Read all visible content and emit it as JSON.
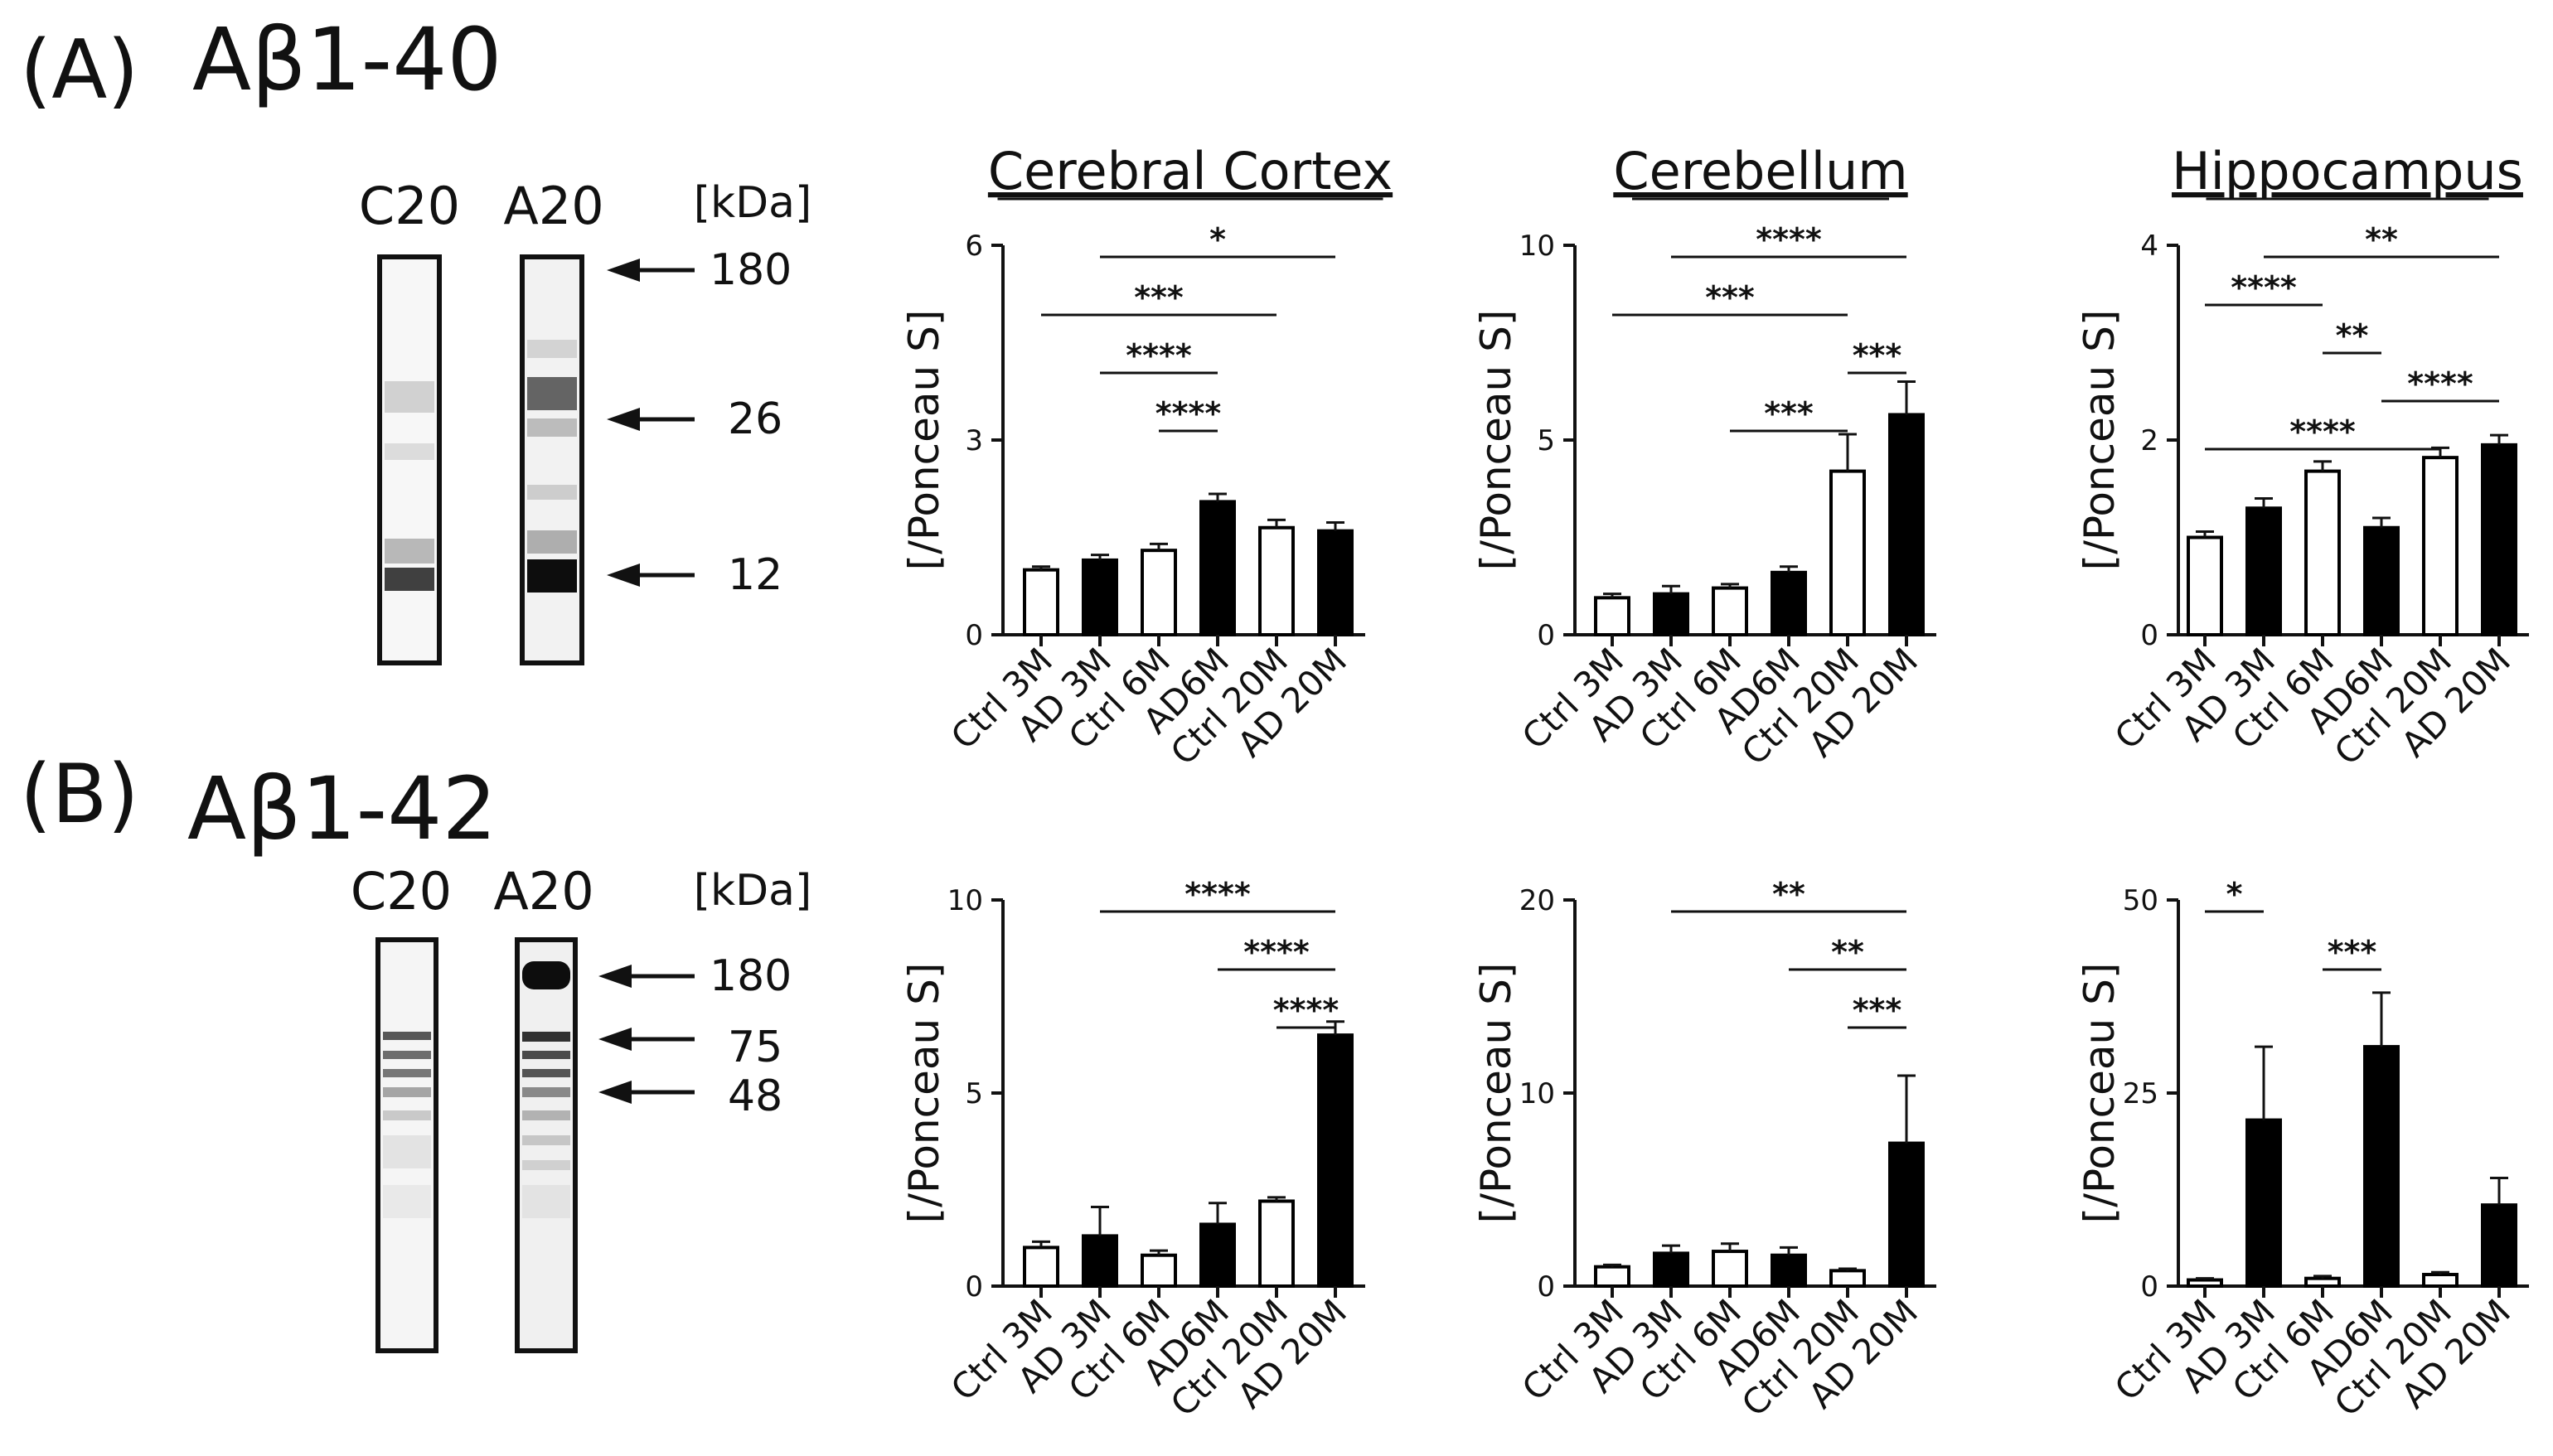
{
  "panels": [
    {
      "label": "(A)",
      "antibody": "Aβ1-40",
      "blot": {
        "lanes": [
          "C20",
          "A20"
        ],
        "unit_label": "[kDa]",
        "markers": [
          "180",
          "26",
          "12"
        ]
      }
    },
    {
      "label": "(B)",
      "antibody": "Aβ1-42",
      "blot": {
        "lanes": [
          "C20",
          "A20"
        ],
        "unit_label": "[kDa]",
        "markers": [
          "180",
          "75",
          "48"
        ]
      }
    }
  ],
  "region_titles": [
    "Cerebral Cortex",
    "Cerebellum",
    "Hippocampus"
  ],
  "chart_data": [
    {
      "type": "bar",
      "panel": "A",
      "title": "Cerebral Cortex",
      "ylabel": "[/Ponceau S]",
      "categories": [
        "Ctrl 3M",
        "AD 3M",
        "Ctrl 6M",
        "AD6M",
        "Ctrl 20M",
        "AD 20M"
      ],
      "fill": [
        "white",
        "black",
        "white",
        "black",
        "white",
        "black"
      ],
      "values": [
        1.0,
        1.15,
        1.3,
        2.05,
        1.65,
        1.6
      ],
      "errors": [
        0.05,
        0.08,
        0.1,
        0.12,
        0.12,
        0.13
      ],
      "ylim": [
        0,
        6
      ],
      "yticks": [
        "0",
        "3",
        "6"
      ],
      "significance": [
        {
          "from": 2,
          "to": 6,
          "label": "*"
        },
        {
          "from": 1,
          "to": 5,
          "label": "***"
        },
        {
          "from": 2,
          "to": 4,
          "label": "****"
        },
        {
          "from": 3,
          "to": 4,
          "label": "****"
        }
      ]
    },
    {
      "type": "bar",
      "panel": "A",
      "title": "Cerebellum",
      "ylabel": "[/Ponceau S]",
      "categories": [
        "Ctrl 3M",
        "AD 3M",
        "Ctrl 6M",
        "AD6M",
        "Ctrl 20M",
        "AD 20M"
      ],
      "fill": [
        "white",
        "black",
        "white",
        "black",
        "white",
        "black"
      ],
      "values": [
        0.95,
        1.05,
        1.2,
        1.6,
        4.2,
        5.65
      ],
      "errors": [
        0.1,
        0.2,
        0.1,
        0.15,
        0.95,
        0.85
      ],
      "ylim": [
        0,
        10
      ],
      "yticks": [
        "0",
        "5",
        "10"
      ],
      "significance": [
        {
          "from": 2,
          "to": 6,
          "label": "****"
        },
        {
          "from": 1,
          "to": 5,
          "label": "***"
        },
        {
          "from": 5,
          "to": 6,
          "label": "***"
        },
        {
          "from": 3,
          "to": 5,
          "label": "***"
        }
      ]
    },
    {
      "type": "bar",
      "panel": "A",
      "title": "Hippocampus",
      "ylabel": "[/Ponceau S]",
      "categories": [
        "Ctrl 3M",
        "AD 3M",
        "Ctrl 6M",
        "AD6M",
        "Ctrl 20M",
        "AD 20M"
      ],
      "fill": [
        "white",
        "black",
        "white",
        "black",
        "white",
        "black"
      ],
      "values": [
        1.0,
        1.3,
        1.68,
        1.1,
        1.82,
        1.95
      ],
      "errors": [
        0.06,
        0.1,
        0.1,
        0.1,
        0.1,
        0.1
      ],
      "ylim": [
        0,
        4
      ],
      "yticks": [
        "0",
        "2",
        "4"
      ],
      "significance": [
        {
          "from": 2,
          "to": 6,
          "label": "**"
        },
        {
          "from": 1,
          "to": 3,
          "label": "****"
        },
        {
          "from": 3,
          "to": 4,
          "label": "**"
        },
        {
          "from": 4,
          "to": 6,
          "label": "****"
        },
        {
          "from": 1,
          "to": 5,
          "label": "****"
        }
      ]
    },
    {
      "type": "bar",
      "panel": "B",
      "title": "",
      "ylabel": "[/Ponceau S]",
      "categories": [
        "Ctrl 3M",
        "AD 3M",
        "Ctrl 6M",
        "AD6M",
        "Ctrl 20M",
        "AD 20M"
      ],
      "fill": [
        "white",
        "black",
        "white",
        "black",
        "white",
        "black"
      ],
      "values": [
        1.0,
        1.3,
        0.8,
        1.6,
        2.2,
        6.5
      ],
      "errors": [
        0.15,
        0.75,
        0.12,
        0.55,
        0.1,
        0.35
      ],
      "ylim": [
        0,
        10
      ],
      "yticks": [
        "0",
        "5",
        "10"
      ],
      "significance": [
        {
          "from": 2,
          "to": 6,
          "label": "****"
        },
        {
          "from": 4,
          "to": 6,
          "label": "****"
        },
        {
          "from": 5,
          "to": 6,
          "label": "****"
        }
      ]
    },
    {
      "type": "bar",
      "panel": "B",
      "title": "",
      "ylabel": "[/Ponceau S]",
      "categories": [
        "Ctrl 3M",
        "AD 3M",
        "Ctrl 6M",
        "AD6M",
        "Ctrl 20M",
        "AD 20M"
      ],
      "fill": [
        "white",
        "black",
        "white",
        "black",
        "white",
        "black"
      ],
      "values": [
        1.0,
        1.7,
        1.8,
        1.6,
        0.8,
        7.4
      ],
      "errors": [
        0.1,
        0.4,
        0.4,
        0.4,
        0.1,
        3.5
      ],
      "ylim": [
        0,
        20
      ],
      "yticks": [
        "0",
        "10",
        "20"
      ],
      "significance": [
        {
          "from": 2,
          "to": 6,
          "label": "**"
        },
        {
          "from": 4,
          "to": 6,
          "label": "**"
        },
        {
          "from": 5,
          "to": 6,
          "label": "***"
        }
      ]
    },
    {
      "type": "bar",
      "panel": "B",
      "title": "",
      "ylabel": "[/Ponceau S]",
      "categories": [
        "Ctrl 3M",
        "AD 3M",
        "Ctrl 6M",
        "AD6M",
        "Ctrl 20M",
        "AD 20M"
      ],
      "fill": [
        "white",
        "black",
        "white",
        "black",
        "white",
        "black"
      ],
      "values": [
        0.8,
        21.5,
        1.0,
        31.0,
        1.5,
        10.5
      ],
      "errors": [
        0.2,
        9.5,
        0.3,
        7.0,
        0.3,
        3.5
      ],
      "ylim": [
        0,
        50
      ],
      "yticks": [
        "0",
        "25",
        "50"
      ],
      "significance": [
        {
          "from": 1,
          "to": 2,
          "label": "*"
        },
        {
          "from": 3,
          "to": 4,
          "label": "***"
        }
      ]
    }
  ]
}
